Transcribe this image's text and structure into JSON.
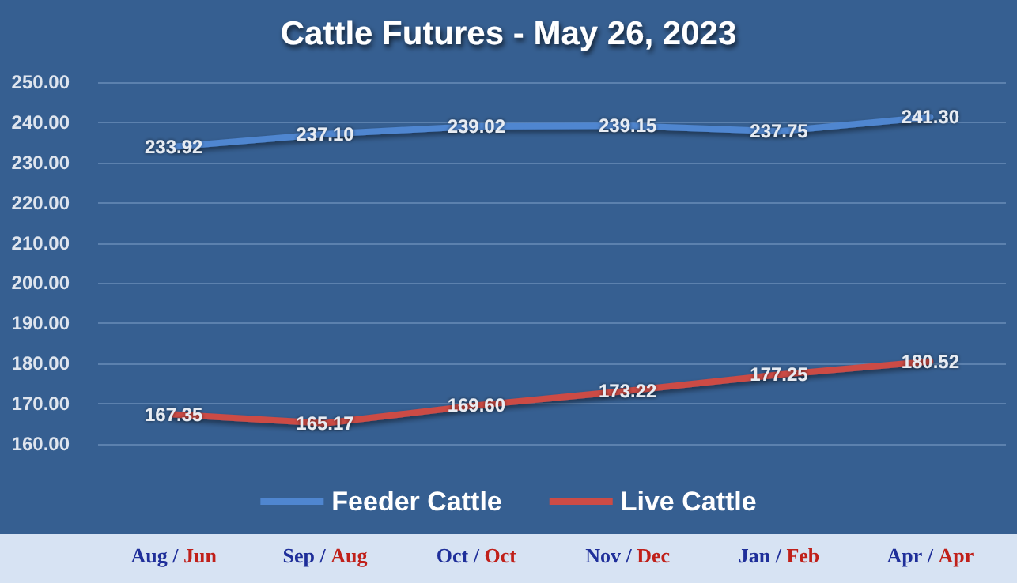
{
  "chart_data": {
    "type": "line",
    "title": "Cattle Futures - May 26, 2023",
    "categories": [
      "Aug / Jun",
      "Sep / Aug",
      "Oct / Oct",
      "Nov / Dec",
      "Jan / Feb",
      "Apr / Apr"
    ],
    "series": [
      {
        "name": "Feeder Cattle",
        "color": "#4f86d0",
        "values": [
          233.92,
          237.1,
          239.02,
          239.15,
          237.75,
          241.3
        ],
        "value_labels": [
          "233.92",
          "237.10",
          "239.02",
          "239.15",
          "237.75",
          "241.30"
        ]
      },
      {
        "name": "Live Cattle",
        "color": "#cc4b45",
        "values": [
          167.35,
          165.17,
          169.6,
          173.22,
          177.25,
          180.52
        ],
        "value_labels": [
          "167.35",
          "165.17",
          "169.60",
          "173.22",
          "177.25",
          "180.52"
        ]
      }
    ],
    "ylim": [
      160,
      250
    ],
    "yticks": [
      {
        "value": 160,
        "label": "160.00"
      },
      {
        "value": 170,
        "label": "170.00"
      },
      {
        "value": 180,
        "label": "180.00"
      },
      {
        "value": 190,
        "label": "190.00"
      },
      {
        "value": 200,
        "label": "200.00"
      },
      {
        "value": 210,
        "label": "210.00"
      },
      {
        "value": 220,
        "label": "220.00"
      },
      {
        "value": 230,
        "label": "230.00"
      },
      {
        "value": 240,
        "label": "240.00"
      },
      {
        "value": 250,
        "label": "250.00"
      }
    ],
    "grid": "y",
    "legend": "bottom",
    "marker": "none",
    "line_style": "solid"
  }
}
